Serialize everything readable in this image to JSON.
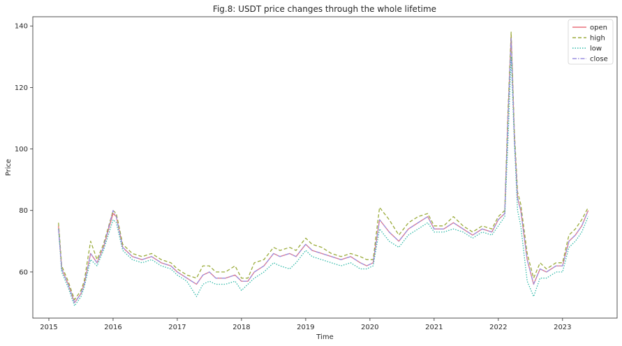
{
  "chart_data": {
    "type": "line",
    "title": "Fig.8: USDT price changes through the whole lifetime",
    "xlabel": "Time",
    "ylabel": "Price",
    "x_ticks": [
      "2015",
      "2016",
      "2017",
      "2018",
      "2019",
      "2020",
      "2021",
      "2022",
      "2023"
    ],
    "y_ticks": [
      60,
      80,
      100,
      120,
      140
    ],
    "xlim": [
      2014.75,
      2023.85
    ],
    "ylim": [
      45,
      143
    ],
    "grid": false,
    "legend_position": "top-right",
    "x": [
      2015.15,
      2015.2,
      2015.3,
      2015.4,
      2015.5,
      2015.55,
      2015.65,
      2015.75,
      2015.85,
      2016.0,
      2016.05,
      2016.15,
      2016.3,
      2016.45,
      2016.6,
      2016.75,
      2016.9,
      2017.0,
      2017.15,
      2017.3,
      2017.4,
      2017.5,
      2017.6,
      2017.75,
      2017.9,
      2018.0,
      2018.1,
      2018.2,
      2018.35,
      2018.5,
      2018.6,
      2018.75,
      2018.85,
      2019.0,
      2019.1,
      2019.25,
      2019.4,
      2019.55,
      2019.7,
      2019.85,
      2019.95,
      2020.05,
      2020.15,
      2020.3,
      2020.45,
      2020.6,
      2020.75,
      2020.9,
      2021.0,
      2021.15,
      2021.3,
      2021.45,
      2021.6,
      2021.75,
      2021.9,
      2022.0,
      2022.1,
      2022.15,
      2022.2,
      2022.25,
      2022.3,
      2022.35,
      2022.45,
      2022.55,
      2022.65,
      2022.75,
      2022.9,
      2023.0,
      2023.1,
      2023.2,
      2023.3,
      2023.4
    ],
    "series": [
      {
        "name": "open",
        "color": "#e8707b",
        "dash": "",
        "values": [
          75,
          61,
          56,
          50,
          53,
          56,
          66,
          63,
          68,
          79,
          78,
          68,
          65,
          64,
          65,
          63,
          62,
          60,
          58,
          56,
          59,
          60,
          58,
          58,
          59,
          57,
          57,
          60,
          62,
          66,
          65,
          66,
          65,
          69,
          67,
          66,
          65,
          64,
          65,
          63,
          62,
          63,
          77,
          73,
          70,
          74,
          76,
          78,
          74,
          74,
          76,
          74,
          72,
          74,
          73,
          77,
          79,
          110,
          137,
          104,
          84,
          80,
          64,
          56,
          61,
          60,
          62,
          62,
          70,
          72,
          75,
          80
        ]
      },
      {
        "name": "high",
        "color": "#9aab3a",
        "dash": "5,3",
        "values": [
          76,
          62,
          57,
          51,
          54,
          57,
          70,
          64,
          69,
          80,
          79,
          69,
          66,
          65,
          66,
          64,
          63,
          61,
          59,
          58,
          62,
          62,
          60,
          60,
          62,
          58,
          58,
          63,
          64,
          68,
          67,
          68,
          67,
          71,
          69,
          68,
          66,
          65,
          66,
          65,
          64,
          64,
          81,
          77,
          72,
          76,
          78,
          79,
          75,
          75,
          78,
          75,
          73,
          75,
          74,
          78,
          80,
          112,
          138,
          106,
          86,
          82,
          66,
          58,
          63,
          61,
          63,
          63,
          72,
          74,
          77,
          81
        ]
      },
      {
        "name": "low",
        "color": "#2fb9a8",
        "dash": "1.5,2",
        "values": [
          74,
          60,
          55,
          49,
          52,
          55,
          64,
          62,
          67,
          77,
          76,
          67,
          64,
          63,
          64,
          62,
          61,
          59,
          57,
          52,
          56,
          57,
          56,
          56,
          57,
          54,
          56,
          58,
          60,
          63,
          62,
          61,
          63,
          67,
          65,
          64,
          63,
          62,
          63,
          61,
          61,
          62,
          74,
          70,
          68,
          72,
          74,
          76,
          73,
          73,
          74,
          73,
          71,
          73,
          72,
          75,
          78,
          102,
          130,
          102,
          80,
          75,
          57,
          52,
          58,
          58,
          60,
          60,
          68,
          70,
          73,
          78
        ]
      },
      {
        "name": "close",
        "color": "#9a8fe0",
        "dash": "6,2,1.5,2",
        "values": [
          74,
          61,
          56,
          50,
          53,
          56,
          66,
          63,
          68,
          80,
          78,
          68,
          65,
          64,
          65,
          63,
          62,
          60,
          58,
          56,
          59,
          60,
          58,
          58,
          59,
          57,
          57,
          60,
          62,
          66,
          65,
          66,
          65,
          69,
          67,
          66,
          65,
          64,
          65,
          63,
          62,
          63,
          77,
          73,
          70,
          74,
          76,
          78,
          74,
          74,
          76,
          74,
          72,
          74,
          73,
          77,
          79,
          110,
          136,
          104,
          84,
          80,
          64,
          56,
          61,
          60,
          62,
          62,
          70,
          72,
          75,
          80
        ]
      }
    ]
  }
}
